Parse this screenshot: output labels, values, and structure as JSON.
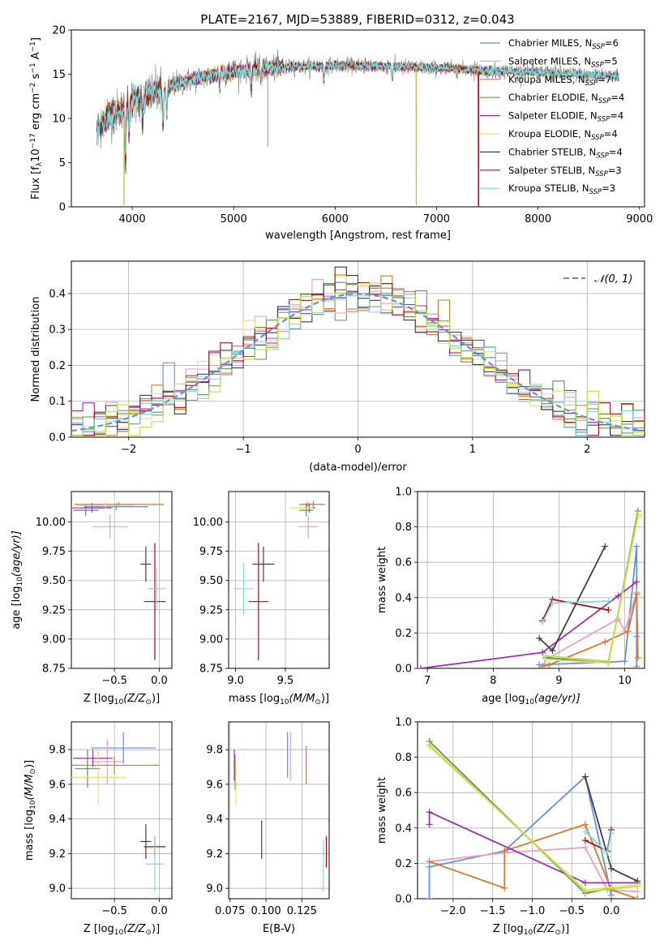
{
  "figure_title": "PLATE=2167, MJD=53889, FIBERID=0312, z=0.043",
  "colors": {
    "Chabrier MILES": "#6a8fd8",
    "Salpeter MILES": "#e7a0c8",
    "Kroupa MILES": "#d97a28",
    "Chabrier ELODIE": "#5f8f5f",
    "Salpeter ELODIE": "#9b30b0",
    "Kroupa ELODIE": "#e8e070",
    "Chabrier STELIB": "#404040",
    "Salpeter STELIB": "#a01010",
    "Kroupa STELIB": "#80d8e0",
    "data": "#808080",
    "normal": "#6a8fd8",
    "ssp_light_green": "#b8e048"
  },
  "chart_data": [
    {
      "id": "spectrum",
      "type": "line",
      "title": "PLATE=2167, MJD=53889, FIBERID=0312, z=0.043",
      "xlabel": "wavelength [Angstrom, rest frame]",
      "ylabel": "Flux [f",
      "ylabel_sub": "λ",
      "ylabel_rest": "10",
      "ylabel_exp": "−17",
      "ylabel_units": " erg cm",
      "ylabel_exp2": "−2",
      "ylabel_units2": " s",
      "ylabel_exp3": "−1",
      "ylabel_units3": " A",
      "ylabel_exp4": "−1",
      "ylabel_end": "]",
      "xlim": [
        3400,
        9050
      ],
      "ylim": [
        0,
        20
      ],
      "xticks": [
        4000,
        5000,
        6000,
        7000,
        8000,
        9000
      ],
      "yticks": [
        0,
        5,
        10,
        15,
        20
      ],
      "legend_position": "upper-right",
      "legend": [
        {
          "name": "Chabrier MILES",
          "n": "6"
        },
        {
          "name": "Salpeter MILES",
          "n": "5"
        },
        {
          "name": "Kroupa MILES",
          "n": "7"
        },
        {
          "name": "Chabrier ELODIE",
          "n": "4"
        },
        {
          "name": "Salpeter ELODIE",
          "n": "4"
        },
        {
          "name": "Kroupa ELODIE",
          "n": "4"
        },
        {
          "name": "Chabrier STELIB",
          "n": "4"
        },
        {
          "name": "Salpeter STELIB",
          "n": "3"
        },
        {
          "name": "Kroupa STELIB",
          "n": "3"
        }
      ],
      "legend_n_label": "N",
      "legend_n_sub": "SSP",
      "continuum": {
        "x": [
          3650,
          3700,
          3800,
          3900,
          4000,
          4100,
          4200,
          4300,
          4400,
          4600,
          4800,
          5000,
          5200,
          5500,
          6000,
          6500,
          7000,
          7500,
          8000,
          8500,
          8800
        ],
        "y": [
          8.5,
          9.5,
          10.5,
          11.0,
          12.0,
          12.3,
          12.8,
          13.2,
          13.8,
          14.4,
          14.9,
          15.3,
          15.6,
          15.8,
          16.0,
          15.9,
          15.7,
          15.4,
          15.2,
          14.9,
          14.8
        ]
      },
      "absorption_lines": [
        {
          "x": 3934,
          "depth": 6.5
        },
        {
          "x": 3969,
          "depth": 4.0
        },
        {
          "x": 4102,
          "depth": 3.0
        },
        {
          "x": 4304,
          "depth": 4.5
        },
        {
          "x": 4341,
          "depth": 3.0
        },
        {
          "x": 4861,
          "depth": 2.0
        },
        {
          "x": 5175,
          "depth": 2.5
        },
        {
          "x": 5270,
          "depth": 1.5
        },
        {
          "x": 5890,
          "depth": 1.8
        },
        {
          "x": 6563,
          "depth": 1.5
        }
      ],
      "model_cutoffs": [
        {
          "model": "Kroupa ELODIE",
          "x": 3920
        },
        {
          "model": "Kroupa ELODIE",
          "x": 6800
        },
        {
          "model": "Kroupa MILES",
          "x": 7410
        },
        {
          "model": "Salpeter STELIB",
          "x": 7410
        }
      ],
      "data_range": [
        3650,
        8800
      ]
    },
    {
      "id": "residuals",
      "type": "histogram",
      "xlabel": "(data-model)/error",
      "ylabel": "Normed distribution",
      "xlim": [
        -2.5,
        2.5
      ],
      "ylim": [
        0,
        0.49
      ],
      "xticks": [
        -2,
        -1,
        0,
        1,
        2
      ],
      "yticks": [
        0.0,
        0.1,
        0.2,
        0.3,
        0.4
      ],
      "legend_position": "upper-right",
      "legend_label": "𝒩(0, 1)",
      "bin_width": 0.1,
      "normal": {
        "mean": 0,
        "sigma": 1
      }
    },
    {
      "id": "age_vs_Z",
      "type": "errorbar",
      "xlabel": "Z [log",
      "xlabel_sub": "10",
      "xlabel_rest": "(Z/Z",
      "xlabel_sun": "⊙",
      "xlabel_end": ")]",
      "ylabel": "age  [log",
      "ylabel_sub": "10",
      "ylabel_rest": "(age/yr)]",
      "xlim": [
        -0.98,
        0.14
      ],
      "ylim": [
        8.75,
        10.26
      ],
      "xticks": [
        -0.5,
        0.0
      ],
      "yticks": [
        8.75,
        9.0,
        9.25,
        9.5,
        9.75,
        10.0
      ],
      "points": [
        {
          "model": "Chabrier MILES",
          "x": -0.48,
          "xerr": 0.36,
          "y": 10.13,
          "yerr": 0.03
        },
        {
          "model": "Salpeter MILES",
          "x": -0.55,
          "xerr": 0.2,
          "y": 9.96,
          "yerr": 0.1
        },
        {
          "model": "Kroupa MILES",
          "x": -0.45,
          "xerr": 0.5,
          "y": 10.15,
          "yerr": 0.02
        },
        {
          "model": "Chabrier ELODIE",
          "x": -0.82,
          "xerr": 0.14,
          "y": 10.1,
          "yerr": 0.05
        },
        {
          "model": "Salpeter ELODIE",
          "x": -0.75,
          "xerr": 0.22,
          "y": 10.12,
          "yerr": 0.04
        },
        {
          "model": "Kroupa ELODIE",
          "x": -0.6,
          "xerr": 0.32,
          "y": 10.14,
          "yerr": 0.03
        },
        {
          "model": "Chabrier STELIB",
          "x": -0.15,
          "xerr": 0.06,
          "y": 9.64,
          "yerr": 0.15
        },
        {
          "model": "Salpeter STELIB",
          "x": -0.05,
          "xerr": 0.12,
          "y": 9.32,
          "yerr": 0.5
        },
        {
          "model": "Kroupa STELIB",
          "x": -0.03,
          "xerr": 0.1,
          "y": 9.43,
          "yerr": 0.18
        }
      ]
    },
    {
      "id": "age_vs_mass",
      "type": "errorbar",
      "xlabel": "mass [log",
      "xlabel_sub": "10",
      "xlabel_rest": "(M/M",
      "xlabel_sun": "⊙",
      "xlabel_end": ")]",
      "xlim": [
        8.93,
        9.94
      ],
      "ylim": [
        8.75,
        10.26
      ],
      "xticks": [
        9.0,
        9.5
      ],
      "yticks": [
        8.75,
        9.0,
        9.25,
        9.5,
        9.75,
        10.0
      ],
      "points": [
        {
          "model": "Chabrier MILES",
          "x": 9.78,
          "xerr": 0.12,
          "y": 10.15,
          "yerr": 0.03
        },
        {
          "model": "Salpeter MILES",
          "x": 9.73,
          "xerr": 0.1,
          "y": 9.96,
          "yerr": 0.1
        },
        {
          "model": "Kroupa MILES",
          "x": 9.72,
          "xerr": 0.08,
          "y": 10.15,
          "yerr": 0.02
        },
        {
          "model": "Chabrier ELODIE",
          "x": 9.71,
          "xerr": 0.07,
          "y": 10.1,
          "yerr": 0.05
        },
        {
          "model": "Salpeter ELODIE",
          "x": 9.74,
          "xerr": 0.06,
          "y": 10.12,
          "yerr": 0.04
        },
        {
          "model": "Kroupa ELODIE",
          "x": 9.66,
          "xerr": 0.12,
          "y": 10.12,
          "yerr": 0.03
        },
        {
          "model": "Chabrier STELIB",
          "x": 9.28,
          "xerr": 0.11,
          "y": 9.64,
          "yerr": 0.15
        },
        {
          "model": "Salpeter STELIB",
          "x": 9.23,
          "xerr": 0.1,
          "y": 9.32,
          "yerr": 0.5
        },
        {
          "model": "Kroupa STELIB",
          "x": 9.08,
          "xerr": 0.1,
          "y": 9.43,
          "yerr": 0.22
        }
      ]
    },
    {
      "id": "mass_weight_vs_age",
      "type": "line",
      "xlabel": "age  [log",
      "xlabel_sub": "10",
      "xlabel_rest": "(age/yr)]",
      "ylabel": "mass weight",
      "xlim": [
        6.85,
        10.3
      ],
      "ylim": [
        0,
        1.0
      ],
      "xticks": [
        7,
        8,
        9,
        10
      ],
      "yticks": [
        0.0,
        0.2,
        0.4,
        0.6,
        0.8,
        1.0
      ],
      "series": [
        {
          "model": "Chabrier MILES",
          "x": [
            8.7,
            10.0,
            10.18,
            10.18,
            10.18
          ],
          "y": [
            0.02,
            0.04,
            0.69,
            0.18,
            0.01
          ]
        },
        {
          "model": "Salpeter MILES",
          "x": [
            8.75,
            8.8,
            9.9,
            10.0,
            10.18
          ],
          "y": [
            0.01,
            0.05,
            0.28,
            0.21,
            0.43
          ]
        },
        {
          "model": "Kroupa MILES",
          "x": [
            8.75,
            8.85,
            9.7,
            10.05,
            10.18,
            10.2
          ],
          "y": [
            0.01,
            0.02,
            0.15,
            0.21,
            0.42,
            0.06
          ]
        },
        {
          "model": "Chabrier ELODIE",
          "x": [
            8.8,
            9.75,
            10.2
          ],
          "y": [
            0.06,
            0.03,
            0.89
          ]
        },
        {
          "model": "Salpeter ELODIE",
          "x": [
            6.9,
            8.75,
            9.9,
            10.18
          ],
          "y": [
            0.0,
            0.09,
            0.41,
            0.49
          ]
        },
        {
          "model": "Kroupa ELODIE",
          "x": [
            8.8,
            9.75,
            10.2
          ],
          "y": [
            0.05,
            0.03,
            0.86
          ]
        },
        {
          "model": "Chabrier STELIB",
          "x": [
            8.7,
            8.9,
            9.7
          ],
          "y": [
            0.17,
            0.1,
            0.69
          ]
        },
        {
          "model": "Salpeter STELIB",
          "x": [
            8.75,
            8.9,
            9.75
          ],
          "y": [
            0.27,
            0.39,
            0.33
          ]
        },
        {
          "model": "Kroupa STELIB",
          "x": [
            8.75,
            8.9,
            9.75
          ],
          "y": [
            0.26,
            0.37,
            0.38
          ]
        },
        {
          "model": "ssp_light_green",
          "x": [
            8.8,
            9.75,
            10.2
          ],
          "y": [
            0.07,
            0.04,
            0.87
          ]
        }
      ]
    },
    {
      "id": "mass_vs_Z",
      "type": "errorbar",
      "xlabel": "Z [log",
      "xlabel_sub": "10",
      "xlabel_rest": "(Z/Z",
      "xlabel_sun": "⊙",
      "xlabel_end": ")]",
      "ylabel": "mass [log",
      "ylabel_sub": "10",
      "ylabel_rest": "(M/M",
      "ylabel_sun": "⊙",
      "ylabel_end": ")]",
      "xlim": [
        -0.98,
        0.14
      ],
      "ylim": [
        8.94,
        9.96
      ],
      "xticks": [
        -0.5,
        0.0
      ],
      "yticks": [
        9.0,
        9.2,
        9.4,
        9.6,
        9.8
      ],
      "points": [
        {
          "model": "Chabrier MILES",
          "x": -0.4,
          "xerr": 0.36,
          "y": 9.81,
          "yerr": 0.09
        },
        {
          "model": "Salpeter MILES",
          "x": -0.58,
          "xerr": 0.18,
          "y": 9.73,
          "yerr": 0.13
        },
        {
          "model": "Kroupa MILES",
          "x": -0.5,
          "xerr": 0.5,
          "y": 9.71,
          "yerr": 0.05
        },
        {
          "model": "Chabrier ELODIE",
          "x": -0.8,
          "xerr": 0.14,
          "y": 9.69,
          "yerr": 0.11
        },
        {
          "model": "Salpeter ELODIE",
          "x": -0.74,
          "xerr": 0.22,
          "y": 9.75,
          "yerr": 0.05
        },
        {
          "model": "Kroupa ELODIE",
          "x": -0.68,
          "xerr": 0.3,
          "y": 9.64,
          "yerr": 0.16
        },
        {
          "model": "Chabrier STELIB",
          "x": -0.15,
          "xerr": 0.06,
          "y": 9.27,
          "yerr": 0.1
        },
        {
          "model": "Salpeter STELIB",
          "x": -0.05,
          "xerr": 0.12,
          "y": 9.24,
          "yerr": 0.06
        },
        {
          "model": "Kroupa STELIB",
          "x": -0.05,
          "xerr": 0.1,
          "y": 9.14,
          "yerr": 0.16
        }
      ]
    },
    {
      "id": "mass_vs_EBV",
      "type": "errorbar",
      "xlabel": "E(B-V)",
      "xlim": [
        0.074,
        0.144
      ],
      "ylim": [
        8.94,
        9.96
      ],
      "xticks": [
        0.075,
        0.1,
        0.125
      ],
      "yticks": [
        9.0,
        9.2,
        9.4,
        9.6,
        9.8
      ],
      "xticklabels": [
        "0.075",
        "0.100",
        "0.125"
      ],
      "points": [
        {
          "model": "Chabrier MILES",
          "x": 0.115,
          "xerr": 0.0,
          "y": 9.77,
          "yerr": 0.13
        },
        {
          "model": "Salpeter MILES",
          "x": 0.117,
          "xerr": 0.0,
          "y": 9.76,
          "yerr": 0.14
        },
        {
          "model": "Kroupa MILES",
          "x": 0.128,
          "xerr": 0.0,
          "y": 9.71,
          "yerr": 0.11
        },
        {
          "model": "Chabrier ELODIE",
          "x": 0.0785,
          "xerr": 0.0,
          "y": 9.67,
          "yerr": 0.1
        },
        {
          "model": "Salpeter ELODIE",
          "x": 0.078,
          "xerr": 0.0,
          "y": 9.71,
          "yerr": 0.09
        },
        {
          "model": "Kroupa ELODIE",
          "x": 0.079,
          "xerr": 0.0,
          "y": 9.61,
          "yerr": 0.13
        },
        {
          "model": "Chabrier STELIB",
          "x": 0.097,
          "xerr": 0.0,
          "y": 9.28,
          "yerr": 0.11
        },
        {
          "model": "Salpeter STELIB",
          "x": 0.142,
          "xerr": 0.0,
          "y": 9.21,
          "yerr": 0.09
        },
        {
          "model": "Kroupa STELIB",
          "x": 0.14,
          "xerr": 0.0,
          "y": 9.13,
          "yerr": 0.15
        }
      ]
    },
    {
      "id": "mass_weight_vs_Z",
      "type": "line",
      "xlabel": "Z [log",
      "xlabel_sub": "10",
      "xlabel_rest": "(Z/Z",
      "xlabel_sun": "⊙",
      "xlabel_end": ")]",
      "ylabel": "mass weight",
      "xlim": [
        -2.45,
        0.42
      ],
      "ylim": [
        0,
        1.0
      ],
      "xticks": [
        -2.0,
        -1.5,
        -1.0,
        -0.5,
        0.0
      ],
      "yticks": [
        0.0,
        0.2,
        0.4,
        0.6,
        0.8,
        1.0
      ],
      "series": [
        {
          "model": "Chabrier MILES",
          "x": [
            -2.3,
            -2.3,
            -1.35,
            -0.33,
            0.0
          ],
          "y": [
            0.0,
            0.18,
            0.27,
            0.69,
            0.02
          ]
        },
        {
          "model": "Salpeter MILES",
          "x": [
            -2.3,
            -1.35,
            -0.33,
            -0.05,
            0.33
          ],
          "y": [
            0.21,
            0.26,
            0.29,
            0.05,
            0.04
          ]
        },
        {
          "model": "Kroupa MILES",
          "x": [
            -2.3,
            -1.35,
            -1.35,
            -0.33,
            0.0,
            0.33
          ],
          "y": [
            0.21,
            0.06,
            0.27,
            0.42,
            0.05,
            0.0
          ]
        },
        {
          "model": "Chabrier ELODIE",
          "x": [
            -2.3,
            -0.33,
            0.0
          ],
          "y": [
            0.89,
            0.03,
            0.06
          ]
        },
        {
          "model": "Salpeter ELODIE",
          "x": [
            -2.3,
            -2.3,
            -0.33,
            0.33
          ],
          "y": [
            0.42,
            0.49,
            0.09,
            0.09
          ]
        },
        {
          "model": "Kroupa ELODIE",
          "x": [
            -2.3,
            -0.33,
            0.33
          ],
          "y": [
            0.86,
            0.05,
            0.08
          ]
        },
        {
          "model": "Chabrier STELIB",
          "x": [
            -0.33,
            0.0,
            0.33
          ],
          "y": [
            0.69,
            0.17,
            0.1
          ]
        },
        {
          "model": "Salpeter STELIB",
          "x": [
            -0.33,
            -0.05,
            0.0
          ],
          "y": [
            0.33,
            0.27,
            0.39
          ]
        },
        {
          "model": "Kroupa STELIB",
          "x": [
            -0.33,
            -0.05,
            0.0
          ],
          "y": [
            0.38,
            0.26,
            0.37
          ]
        },
        {
          "model": "ssp_light_green",
          "x": [
            -2.3,
            -0.33,
            0.33
          ],
          "y": [
            0.87,
            0.04,
            0.07
          ]
        }
      ]
    }
  ]
}
